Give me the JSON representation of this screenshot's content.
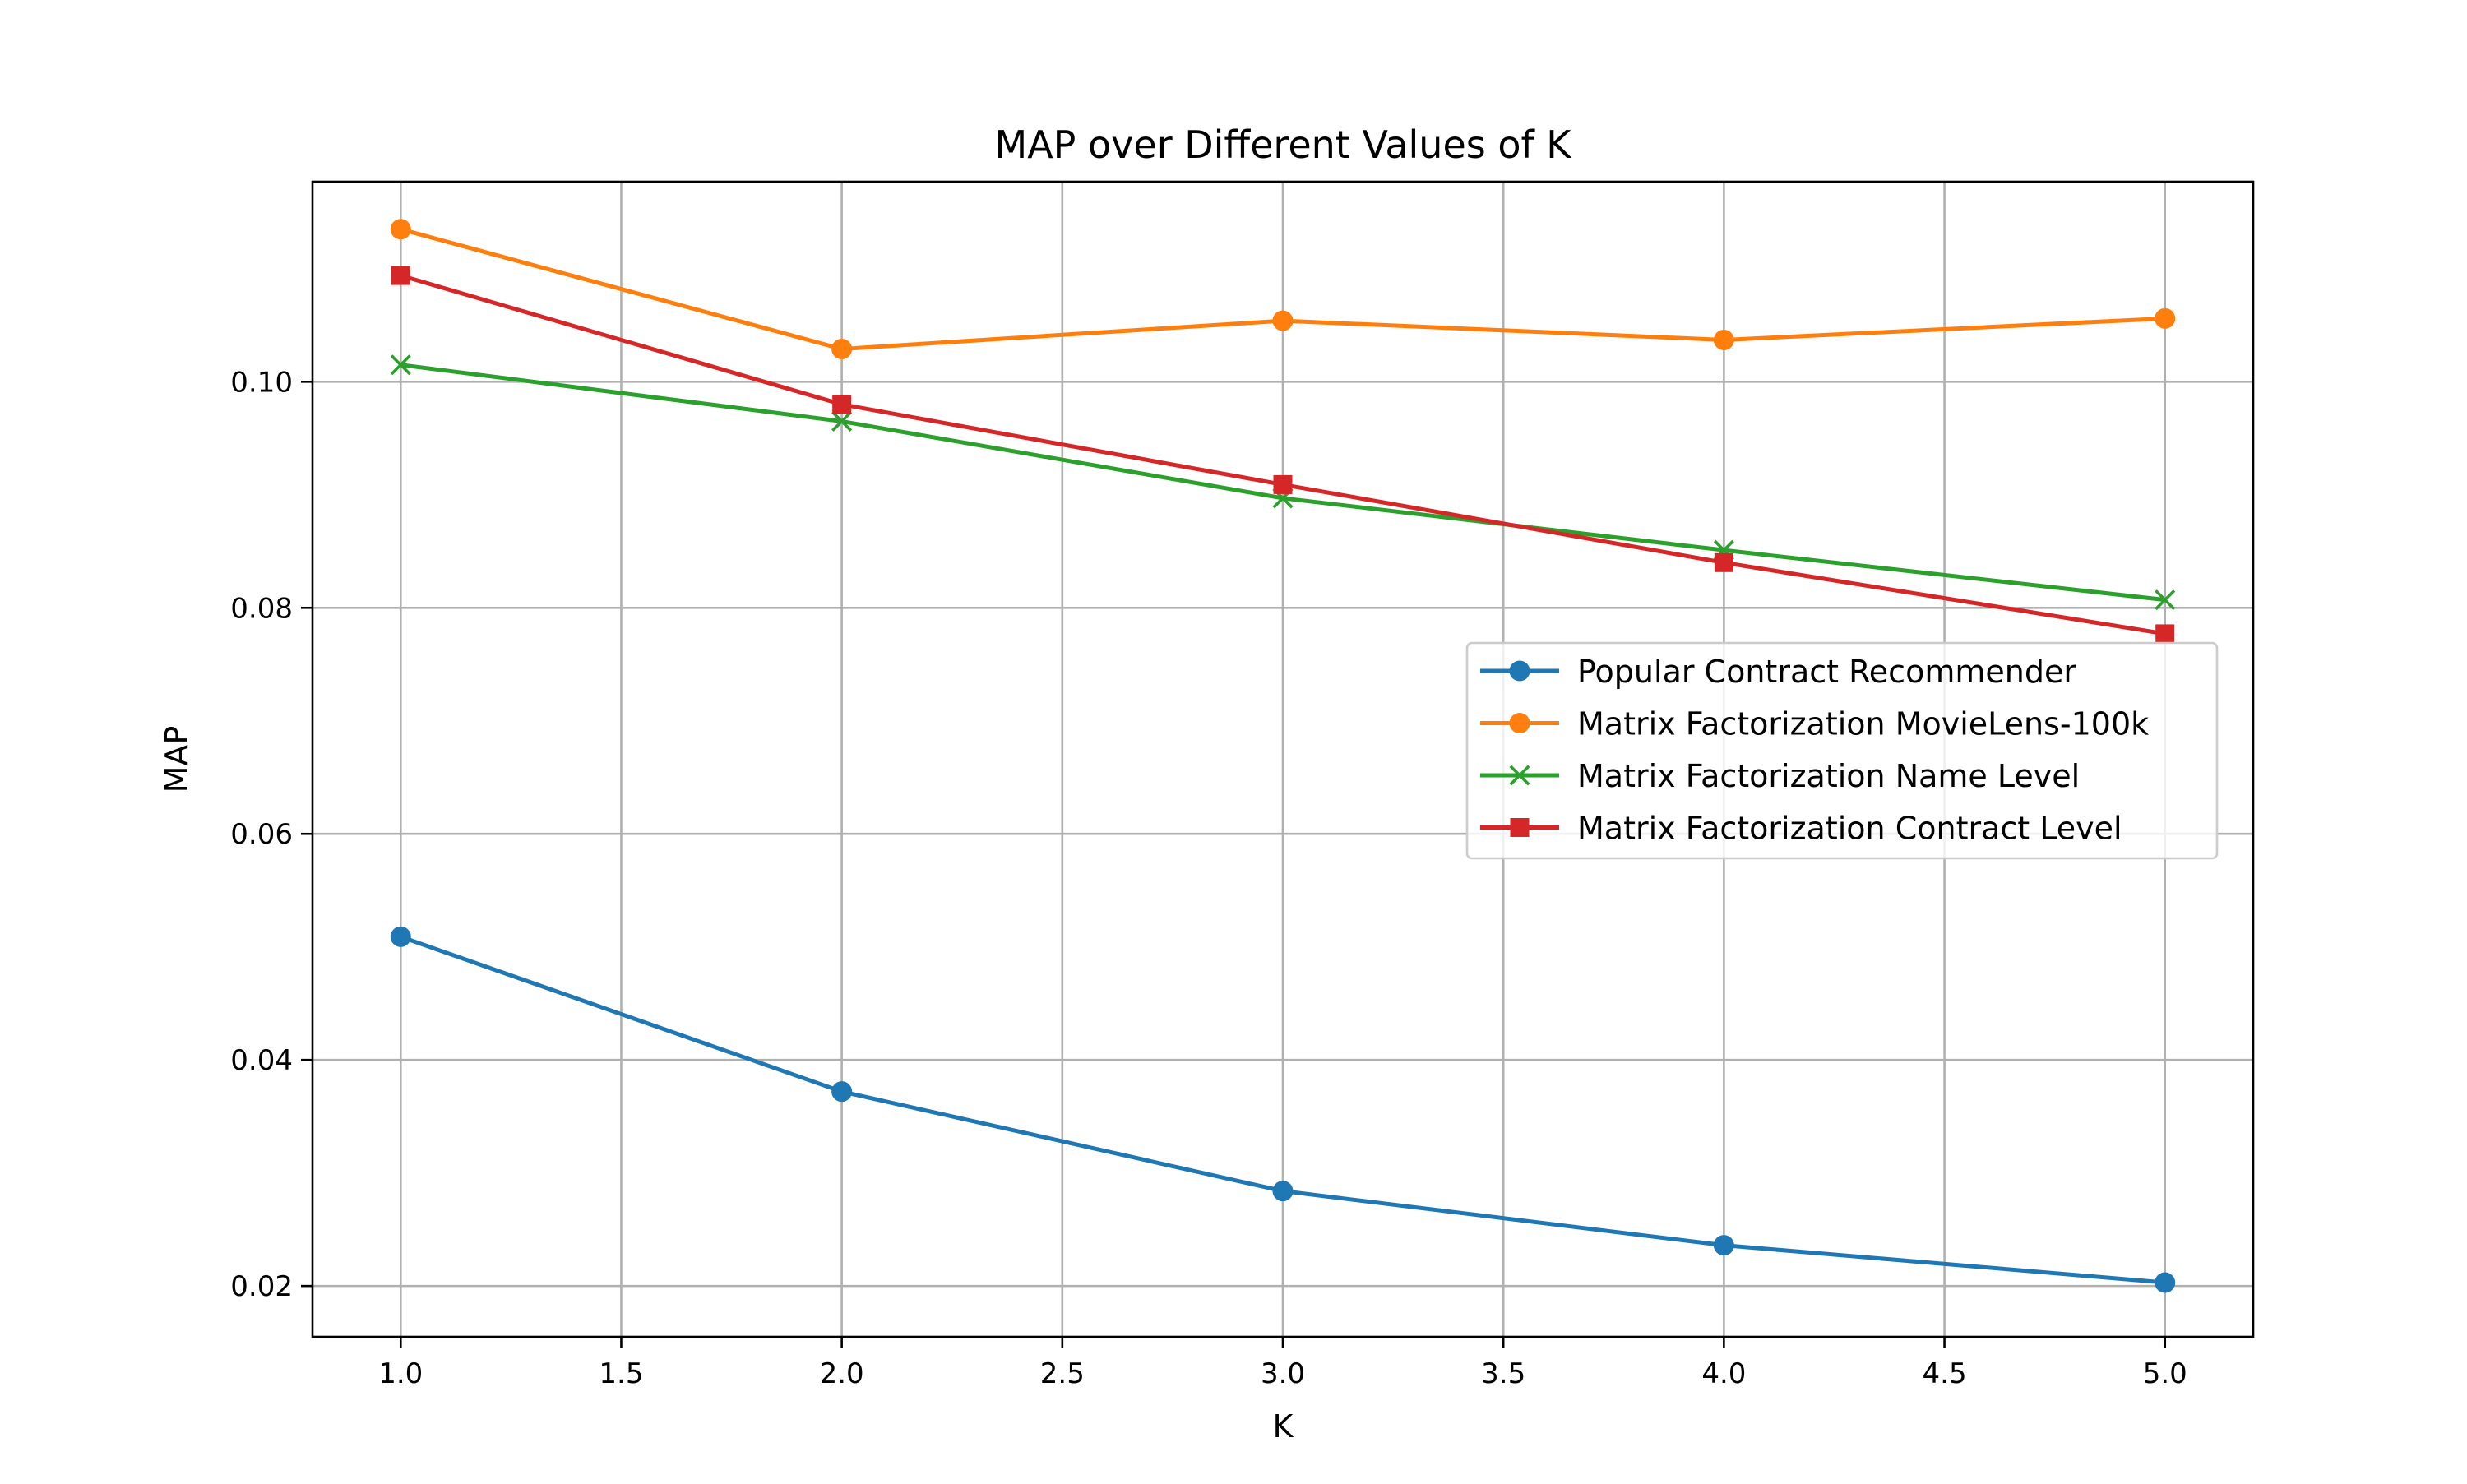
{
  "chart_data": {
    "type": "line",
    "title": "MAP over Different Values of K",
    "xlabel": "K",
    "ylabel": "MAP",
    "x": [
      1,
      2,
      3,
      4,
      5
    ],
    "xlim": [
      0.8,
      5.2
    ],
    "ylim": [
      0.0155,
      0.1177
    ],
    "xticks": [
      "1.0",
      "1.5",
      "2.0",
      "2.5",
      "3.0",
      "3.5",
      "4.0",
      "4.5",
      "5.0"
    ],
    "xtick_values": [
      1.0,
      1.5,
      2.0,
      2.5,
      3.0,
      3.5,
      4.0,
      4.5,
      5.0
    ],
    "yticks": [
      "0.02",
      "0.04",
      "0.06",
      "0.08",
      "0.10"
    ],
    "ytick_values": [
      0.02,
      0.04,
      0.06,
      0.08,
      0.1
    ],
    "grid": true,
    "legend_position": "center-right",
    "series": [
      {
        "name": "Popular Contract Recommender",
        "color": "#1f77b4",
        "marker": "circle",
        "values": [
          0.0509,
          0.0372,
          0.0284,
          0.0236,
          0.0203
        ]
      },
      {
        "name": "Matrix Factorization MovieLens-100k",
        "color": "#ff7f0e",
        "marker": "circle",
        "values": [
          0.1135,
          0.1029,
          0.1054,
          0.1037,
          0.1056
        ]
      },
      {
        "name": "Matrix Factorization Name Level",
        "color": "#2ca02c",
        "marker": "x",
        "values": [
          0.1015,
          0.0965,
          0.0897,
          0.0851,
          0.0807
        ]
      },
      {
        "name": "Matrix Factorization Contract Level",
        "color": "#d62728",
        "marker": "square",
        "values": [
          0.1094,
          0.098,
          0.0909,
          0.084,
          0.0777
        ]
      }
    ]
  }
}
